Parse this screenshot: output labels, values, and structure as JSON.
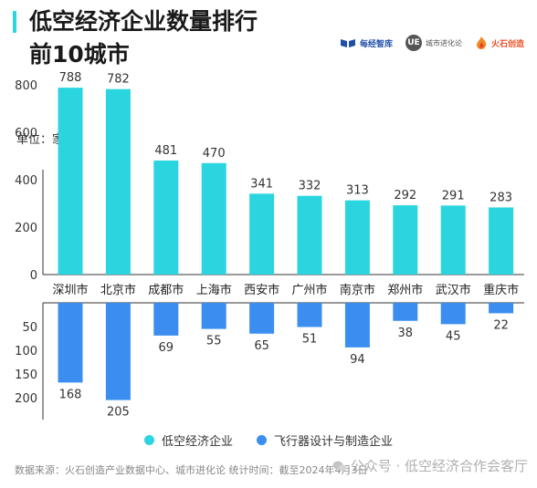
{
  "header": {
    "title_line1": "低空经济企业数量排行",
    "title_line2": "前10城市",
    "accent_color": "#2bd5e0"
  },
  "logos": [
    {
      "name": "每经智库",
      "icon": "book-logo-icon"
    },
    {
      "name": "城市进化论",
      "icon": "ue-circle-logo-icon"
    },
    {
      "name": "火石创造",
      "icon": "flame-logo-icon"
    }
  ],
  "unit_label": "单位：家",
  "chart_data": {
    "type": "bar",
    "categories": [
      "深圳市",
      "北京市",
      "成都市",
      "上海市",
      "西安市",
      "广州市",
      "南京市",
      "郑州市",
      "武汉市",
      "重庆市"
    ],
    "series": [
      {
        "name": "低空经济企业",
        "values": [
          788,
          782,
          481,
          470,
          341,
          332,
          313,
          292,
          291,
          283
        ],
        "color": "#2bd5e0"
      },
      {
        "name": "飞行器设计与制造企业",
        "values": [
          168,
          205,
          69,
          55,
          65,
          51,
          94,
          38,
          45,
          22
        ],
        "color": "#3b8ef0"
      }
    ],
    "upper_axis": {
      "ylim": [
        0,
        800
      ],
      "ticks": [
        "0",
        "200",
        "400",
        "600",
        "800"
      ]
    },
    "lower_axis": {
      "ylim": [
        0,
        200
      ],
      "ticks": [
        "50",
        "100",
        "150",
        "200"
      ]
    },
    "legend_position": "bottom-center"
  },
  "footer": {
    "source": "数据来源：火石创造产业数据中心、城市进化论 统计时间：截至2024年4月3日",
    "watermark": "公众号 · 低空经济合作会客厅"
  }
}
